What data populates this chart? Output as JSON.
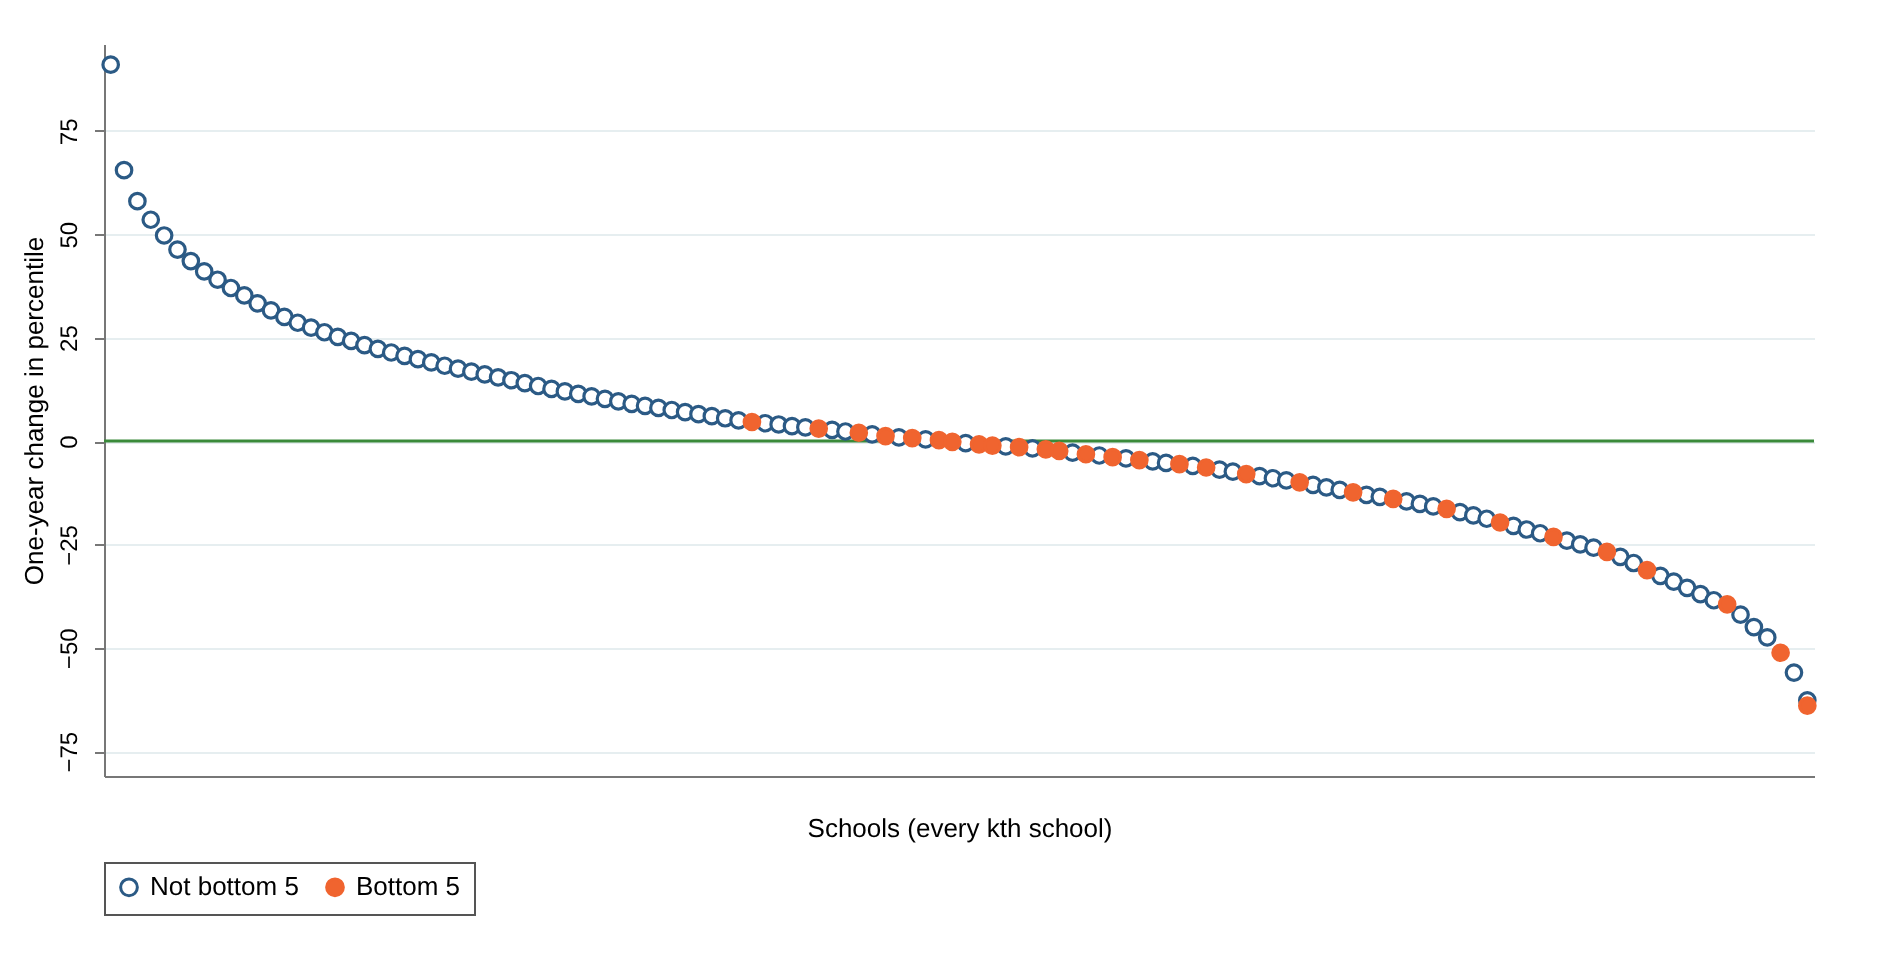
{
  "chart_data": {
    "type": "scatter",
    "xlabel": "Schools (every kth school)",
    "ylabel": "One-year change in percentile",
    "categories": [
      null,
      null,
      null,
      null,
      null,
      null,
      null,
      null,
      null,
      null,
      null,
      null,
      null,
      null,
      null,
      null,
      null,
      null,
      null,
      null,
      null,
      null,
      null,
      null,
      null,
      null,
      null,
      null,
      null,
      null,
      null,
      null,
      null,
      null,
      null,
      null,
      null,
      null,
      null,
      null,
      null,
      null,
      null,
      null,
      null,
      null,
      null,
      null,
      null,
      null,
      null,
      null,
      null,
      null,
      null,
      null,
      null,
      null,
      null,
      null,
      null,
      null,
      null,
      null,
      null,
      null,
      null,
      null,
      null,
      null,
      null,
      null,
      null,
      null,
      null,
      null,
      null,
      null,
      null,
      null,
      null,
      null,
      null,
      null,
      null,
      null,
      null,
      null,
      null,
      null,
      null,
      null,
      null,
      null,
      null,
      null,
      null,
      null,
      null,
      null,
      null,
      null,
      null,
      null,
      null,
      null,
      null,
      null,
      null,
      null,
      null,
      null,
      null,
      null,
      null,
      null,
      null,
      null,
      null,
      null,
      null,
      null,
      null,
      null,
      null,
      null,
      null,
      null
    ],
    "series": [
      {
        "name": "Not bottom 5",
        "color": "#2b5a85",
        "values": [
          91,
          65.5,
          58,
          53.5,
          49.7,
          46.3,
          43.5,
          41,
          39,
          37,
          35.2,
          33.3,
          31.6,
          30,
          28.6,
          27.4,
          26.3,
          25.2,
          24.2,
          23.2,
          22.3,
          21.4,
          20.6,
          19.8,
          19,
          18.2,
          17.5,
          16.8,
          16.1,
          15.4,
          14.7,
          14,
          13.3,
          12.6,
          12,
          11.4,
          10.8,
          10.2,
          9.6,
          9,
          8.5,
          8,
          7.5,
          7,
          6.5,
          6,
          5.5,
          5,
          null,
          4.3,
          4,
          3.6,
          3.3,
          null,
          2.7,
          2.3,
          null,
          1.6,
          null,
          0.9,
          null,
          0.4,
          null,
          null,
          -0.5,
          null,
          null,
          -1.3,
          null,
          -1.8,
          null,
          null,
          -2.8,
          null,
          -3.5,
          null,
          -4.2,
          null,
          -4.9,
          -5.3,
          null,
          -6,
          null,
          -6.9,
          -7.4,
          null,
          -8.5,
          -9,
          -9.5,
          null,
          -10.6,
          -11.2,
          -11.8,
          null,
          -13,
          -13.5,
          null,
          -14.6,
          -15.2,
          -15.8,
          null,
          -17.2,
          -18,
          -18.8,
          null,
          -20.5,
          -21.4,
          -22.3,
          null,
          -24.1,
          -25,
          -25.8,
          null,
          -28,
          -29.5,
          null,
          -32.6,
          -34,
          -35.5,
          -37,
          -38.5,
          null,
          -42,
          -45,
          -47.5,
          null,
          -56,
          -62.7
        ]
      },
      {
        "name": "Bottom 5",
        "color": "#f0642f",
        "values": [
          null,
          null,
          null,
          null,
          null,
          null,
          null,
          null,
          null,
          null,
          null,
          null,
          null,
          null,
          null,
          null,
          null,
          null,
          null,
          null,
          null,
          null,
          null,
          null,
          null,
          null,
          null,
          null,
          null,
          null,
          null,
          null,
          null,
          null,
          null,
          null,
          null,
          null,
          null,
          null,
          null,
          null,
          null,
          null,
          null,
          null,
          null,
          null,
          4.6,
          null,
          null,
          null,
          null,
          3,
          null,
          null,
          2,
          null,
          1.2,
          null,
          0.7,
          null,
          0.2,
          -0.2,
          null,
          -0.8,
          -1.1,
          null,
          -1.5,
          null,
          -2,
          -2.4,
          null,
          -3.2,
          null,
          -3.9,
          null,
          -4.6,
          null,
          null,
          -5.6,
          null,
          -6.4,
          null,
          null,
          -8,
          null,
          null,
          null,
          -10,
          null,
          null,
          null,
          -12.4,
          null,
          null,
          -14,
          null,
          null,
          null,
          -16.4,
          null,
          null,
          null,
          -19.7,
          null,
          null,
          null,
          -23.2,
          null,
          null,
          null,
          -26.8,
          null,
          null,
          -31.2,
          null,
          null,
          null,
          null,
          null,
          -39.5,
          null,
          null,
          null,
          -51.2,
          null,
          -64
        ]
      }
    ],
    "ylim": [
      -81,
      96
    ],
    "yticks": [
      -75,
      -50,
      -25,
      0,
      25,
      50,
      75
    ],
    "tick_labels": "y",
    "grid": "y",
    "legend": "bottom",
    "marker": "circle",
    "ref_lines": [
      {
        "axis": "y",
        "value": 0,
        "color": "#3a8a3a"
      }
    ]
  }
}
